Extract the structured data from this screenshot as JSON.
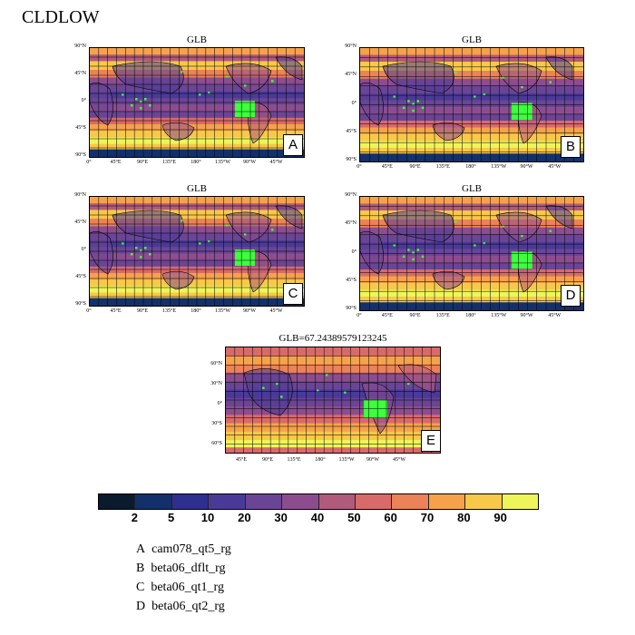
{
  "title": "CLDLOW",
  "panels": [
    {
      "id": "A",
      "title": "GLB",
      "letter": "A"
    },
    {
      "id": "B",
      "title": "GLB",
      "letter": "B"
    },
    {
      "id": "C",
      "title": "GLB",
      "letter": "C"
    },
    {
      "id": "D",
      "title": "GLB",
      "letter": "D"
    },
    {
      "id": "E",
      "title": "GLB=67.24389579123245",
      "letter": "E"
    }
  ],
  "lat_labels_full": [
    "90°N",
    "45°N",
    "0°",
    "45°S",
    "90°S"
  ],
  "lon_labels_full": [
    "0°",
    "45°E",
    "90°E",
    "135°E",
    "180°",
    "135°W",
    "90°W",
    "45°W"
  ],
  "lat_labels_E": [
    "60°N",
    "30°N",
    "0°",
    "30°S",
    "60°S"
  ],
  "lon_labels_E": [
    "45°E",
    "90°E",
    "135°E",
    "180°",
    "135°W",
    "90°W",
    "45°W"
  ],
  "colorbar": {
    "colors": [
      "#0c1a2e",
      "#13306a",
      "#2e2f8f",
      "#4a3a98",
      "#6a4595",
      "#8c4d8e",
      "#b05a7c",
      "#d86a6a",
      "#ec8258",
      "#f5a24a",
      "#f7c849",
      "#eef55a"
    ],
    "ticks": [
      "2",
      "5",
      "10",
      "20",
      "30",
      "40",
      "50",
      "60",
      "70",
      "80",
      "90"
    ]
  },
  "legend": [
    {
      "letter": "A",
      "name": "cam078_qt5_rg"
    },
    {
      "letter": "B",
      "name": "beta06_dflt_rg"
    },
    {
      "letter": "C",
      "name": "beta06_qt1_rg"
    },
    {
      "letter": "D",
      "name": "beta06_qt2_rg"
    }
  ]
}
